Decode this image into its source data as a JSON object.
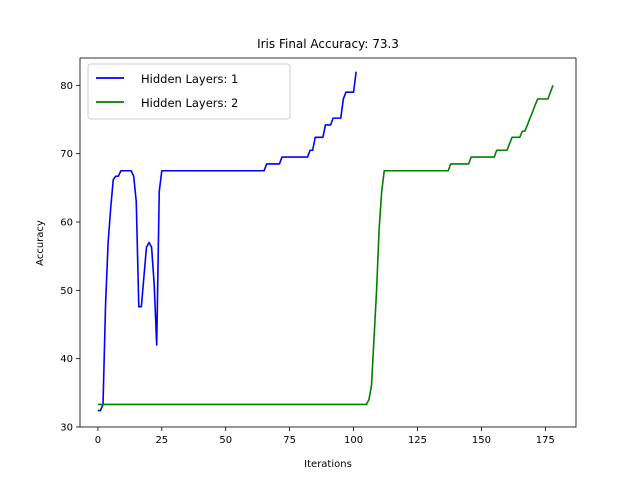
{
  "chart_data": {
    "type": "line",
    "title": "Iris Final Accuracy: 73.3",
    "xlabel": "Iterations",
    "ylabel": "Accuracy",
    "xlim": [
      -7,
      187
    ],
    "ylim": [
      30,
      84
    ],
    "xticks": [
      0,
      25,
      50,
      75,
      100,
      125,
      150,
      175
    ],
    "yticks": [
      30,
      40,
      50,
      60,
      70,
      80
    ],
    "grid": false,
    "legend_position": "top-left",
    "series": [
      {
        "name": "Hidden Layers: 1",
        "color": "#0000ff",
        "x": [
          0,
          1,
          2,
          3,
          4,
          5,
          6,
          7,
          8,
          9,
          10,
          11,
          12,
          13,
          14,
          15,
          16,
          17,
          18,
          19,
          20,
          21,
          22,
          23,
          24,
          25,
          26,
          30,
          40,
          50,
          60,
          65,
          66,
          70,
          71,
          72,
          75,
          80,
          82,
          83,
          84,
          85,
          86,
          87,
          88,
          89,
          90,
          91,
          92,
          93,
          94,
          95,
          96,
          97,
          98,
          99,
          100,
          101
        ],
        "y": [
          32.4,
          32.4,
          33.3,
          48.0,
          57.0,
          62.0,
          66.2,
          66.7,
          66.7,
          67.5,
          67.5,
          67.5,
          67.5,
          67.5,
          66.7,
          63.0,
          47.6,
          47.6,
          52.0,
          56.3,
          57.0,
          56.3,
          51.0,
          42.0,
          64.5,
          67.5,
          67.5,
          67.5,
          67.5,
          67.5,
          67.5,
          67.5,
          68.5,
          68.5,
          68.5,
          69.5,
          69.5,
          69.5,
          69.5,
          70.5,
          70.5,
          72.4,
          72.4,
          72.4,
          72.4,
          74.2,
          74.2,
          74.2,
          75.2,
          75.2,
          75.2,
          75.2,
          78.0,
          79.0,
          79.0,
          79.0,
          79.0,
          82.0
        ]
      },
      {
        "name": "Hidden Layers: 2",
        "color": "#008000",
        "x": [
          0,
          50,
          100,
          105,
          106,
          107,
          108,
          109,
          110,
          111,
          112,
          113,
          114,
          120,
          130,
          137,
          138,
          140,
          145,
          146,
          150,
          155,
          156,
          158,
          160,
          162,
          164,
          165,
          166,
          167,
          168,
          169,
          170,
          171,
          172,
          173,
          175,
          176,
          177,
          178
        ],
        "y": [
          33.3,
          33.3,
          33.3,
          33.3,
          34.0,
          36.0,
          43.0,
          50.0,
          59.0,
          64.5,
          67.5,
          67.5,
          67.5,
          67.5,
          67.5,
          67.5,
          68.5,
          68.5,
          68.5,
          69.5,
          69.5,
          69.5,
          70.5,
          70.5,
          70.5,
          72.4,
          72.4,
          72.4,
          73.3,
          73.3,
          74.2,
          75.2,
          76.1,
          77.1,
          78.0,
          78.0,
          78.0,
          78.0,
          79.0,
          80.0
        ]
      }
    ]
  }
}
